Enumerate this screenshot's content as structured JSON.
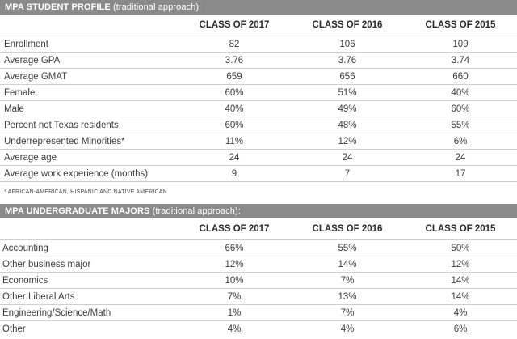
{
  "student_profile": {
    "title": "MPA STUDENT PROFILE",
    "subtitle": " (traditional approach):",
    "columns": [
      "",
      "CLASS OF 2017",
      "CLASS OF 2016",
      "CLASS OF 2015"
    ],
    "rows": [
      [
        "Enrollment",
        "82",
        "106",
        "109"
      ],
      [
        "Average GPA",
        "3.76",
        "3.76",
        "3.74"
      ],
      [
        "Average GMAT",
        "659",
        "656",
        "660"
      ],
      [
        "Female",
        "60%",
        "51%",
        "40%"
      ],
      [
        "Male",
        "40%",
        "49%",
        "60%"
      ],
      [
        "Percent not Texas residents",
        "60%",
        "48%",
        "55%"
      ],
      [
        "Underrepresented Minorities*",
        "11%",
        "12%",
        "6%"
      ],
      [
        "Average age",
        "24",
        "24",
        "24"
      ],
      [
        "Average work experience (months)",
        "9",
        "7",
        "17"
      ]
    ],
    "footnote": "* AFRICAN-AMERICAN, HISPANIC AND NATIVE AMERICAN"
  },
  "undergrad_majors": {
    "title": "MPA UNDERGRADUATE MAJORS",
    "subtitle": " (traditional approach):",
    "columns": [
      "",
      "CLASS OF 2017",
      "CLASS OF 2016",
      "CLASS OF 2015"
    ],
    "rows": [
      [
        "Accounting",
        "66%",
        "55%",
        "50%"
      ],
      [
        "Other business major",
        "12%",
        "14%",
        "12%"
      ],
      [
        "Economics",
        "10%",
        "7%",
        "14%"
      ],
      [
        "Other Liberal Arts",
        "7%",
        "13%",
        "14%"
      ],
      [
        "Engineering/Science/Math",
        "1%",
        "7%",
        "4%"
      ],
      [
        "Other",
        "4%",
        "4%",
        "6%"
      ]
    ]
  },
  "colors": {
    "banner_bg": "#8a8a8a",
    "rule": "#cfcfcf",
    "text": "#3c3c3c"
  }
}
